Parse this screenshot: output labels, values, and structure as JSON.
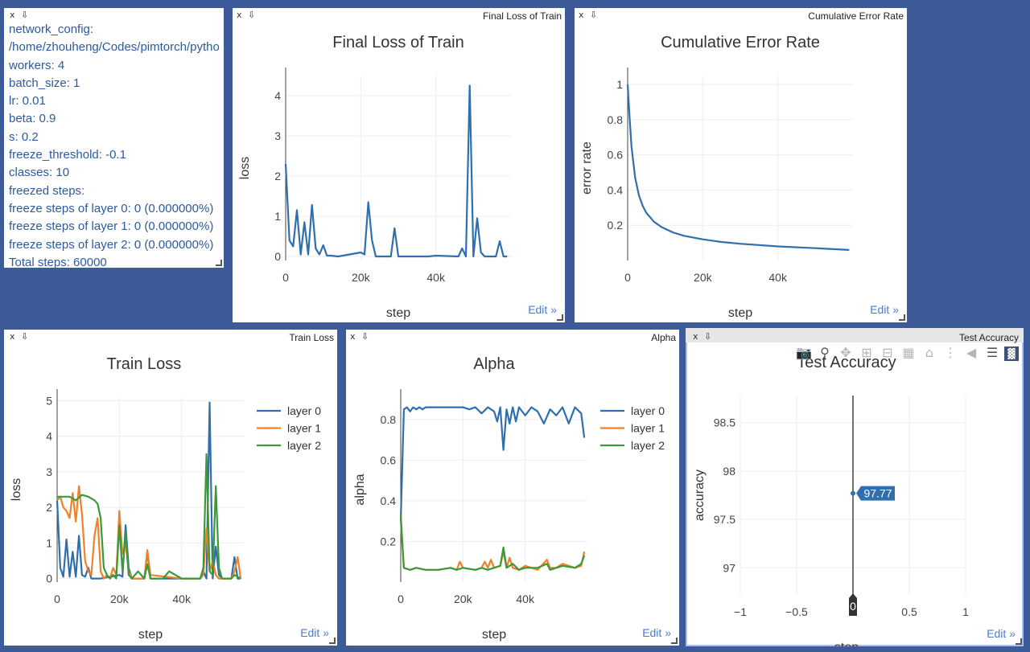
{
  "window_controls": {
    "close": "x",
    "download": "⇩"
  },
  "edit_label": "Edit »",
  "config_pane": {
    "lines": [
      "network_config:",
      "/home/zhouheng/Codes/pimtorch/pytho",
      "workers: 4",
      "batch_size: 1",
      "lr: 0.01",
      "beta: 0.9",
      "s: 0.2",
      "freeze_threshold: -0.1",
      "classes: 10",
      "freezed steps:",
      "freeze steps of layer 0: 0 (0.000000%)",
      "freeze steps of layer 1: 0 (0.000000%)",
      "freeze steps of layer 2: 0 (0.000000%)",
      "Total steps: 60000"
    ]
  },
  "colors": {
    "layer0": "#2f6fad",
    "layer1": "#f0802a",
    "layer2": "#3a9a3a",
    "tooltip": "#2f6fad"
  },
  "modebar_icons": [
    "camera-icon",
    "zoom-icon",
    "pan-icon",
    "zoom-in-icon",
    "zoom-out-icon",
    "autoscale-icon",
    "home-icon",
    "spike-lines-icon",
    "hover-closest-icon",
    "hover-compare-icon",
    "plotly-logo-icon"
  ],
  "chart_data": [
    {
      "pane_title": "Final Loss of Train",
      "type": "line",
      "title": "Final Loss of Train",
      "xlabel": "step",
      "ylabel": "loss",
      "xlim": [
        0,
        60000
      ],
      "ylim": [
        -0.1,
        4.5
      ],
      "xticks": [
        {
          "v": 0,
          "label": "0"
        },
        {
          "v": 20000,
          "label": "20k"
        },
        {
          "v": 40000,
          "label": "40k"
        }
      ],
      "yticks": [
        {
          "v": 0,
          "label": "0"
        },
        {
          "v": 1,
          "label": "1"
        },
        {
          "v": 2,
          "label": "2"
        },
        {
          "v": 3,
          "label": "3"
        },
        {
          "v": 4,
          "label": "4"
        }
      ],
      "series": [
        {
          "color_key": "layer0",
          "x": [
            0,
            1000,
            2000,
            3000,
            4000,
            5000,
            6000,
            7000,
            8000,
            9000,
            10000,
            11000,
            12000,
            14000,
            20000,
            21000,
            22000,
            23000,
            24000,
            25000,
            28000,
            29000,
            30000,
            38000,
            40000,
            46000,
            47000,
            48000,
            49000,
            50000,
            51000,
            52000,
            53000,
            56000,
            57000,
            58000,
            59000
          ],
          "y": [
            2.3,
            0.4,
            0.25,
            1.15,
            0.05,
            0.85,
            0.05,
            1.28,
            0.2,
            0.05,
            0.28,
            0.02,
            0.02,
            0.0,
            0.1,
            0.05,
            1.35,
            0.4,
            0.0,
            0.0,
            0.0,
            0.7,
            0.0,
            0.0,
            0.02,
            0.0,
            0.2,
            0.0,
            4.25,
            0.0,
            0.95,
            0.1,
            0.0,
            0.0,
            0.38,
            0.0,
            0.0
          ]
        }
      ]
    },
    {
      "pane_title": "Cumulative Error Rate",
      "type": "line",
      "title": "Cumulative Error Rate",
      "xlabel": "step",
      "ylabel": "error rate",
      "xlim": [
        0,
        60000
      ],
      "ylim": [
        0,
        1.05
      ],
      "xticks": [
        {
          "v": 0,
          "label": "0"
        },
        {
          "v": 20000,
          "label": "20k"
        },
        {
          "v": 40000,
          "label": "40k"
        }
      ],
      "yticks": [
        {
          "v": 0.2,
          "label": "0.2"
        },
        {
          "v": 0.4,
          "label": "0.4"
        },
        {
          "v": 0.6,
          "label": "0.6"
        },
        {
          "v": 0.8,
          "label": "0.8"
        },
        {
          "v": 1,
          "label": "1"
        }
      ],
      "series": [
        {
          "color_key": "layer0",
          "x": [
            0,
            500,
            1000,
            2000,
            3000,
            4000,
            5000,
            7000,
            9000,
            12000,
            15000,
            20000,
            25000,
            30000,
            40000,
            50000,
            59000
          ],
          "y": [
            1.0,
            0.82,
            0.65,
            0.47,
            0.37,
            0.31,
            0.27,
            0.22,
            0.19,
            0.16,
            0.14,
            0.12,
            0.105,
            0.095,
            0.08,
            0.07,
            0.06
          ]
        }
      ]
    },
    {
      "pane_title": "Train Loss",
      "type": "line",
      "title": "Train Loss",
      "xlabel": "step",
      "ylabel": "loss",
      "xlim": [
        0,
        60000
      ],
      "ylim": [
        -0.1,
        5.1
      ],
      "xticks": [
        {
          "v": 0,
          "label": "0"
        },
        {
          "v": 20000,
          "label": "20k"
        },
        {
          "v": 40000,
          "label": "40k"
        }
      ],
      "yticks": [
        {
          "v": 0,
          "label": "0"
        },
        {
          "v": 1,
          "label": "1"
        },
        {
          "v": 2,
          "label": "2"
        },
        {
          "v": 3,
          "label": "3"
        },
        {
          "v": 4,
          "label": "4"
        },
        {
          "v": 5,
          "label": "5"
        }
      ],
      "legend": [
        "layer 0",
        "layer 1",
        "layer 2"
      ],
      "series": [
        {
          "name": "layer 0",
          "color_key": "layer0",
          "x": [
            0,
            1000,
            2000,
            3000,
            4000,
            5000,
            6000,
            7000,
            8000,
            9000,
            10000,
            11000,
            12000,
            14000,
            20000,
            21000,
            22000,
            23000,
            24000,
            25000,
            28000,
            29000,
            30000,
            38000,
            40000,
            46000,
            47000,
            48000,
            49000,
            50000,
            51000,
            52000,
            53000,
            56000,
            57000,
            58000,
            59000
          ],
          "y": [
            2.2,
            0.3,
            0.05,
            1.1,
            0.05,
            0.75,
            0.05,
            1.2,
            0.1,
            0.05,
            0.3,
            0.0,
            0.0,
            0.0,
            0.1,
            0.05,
            1.5,
            0.3,
            0.0,
            0.0,
            0.0,
            0.75,
            0.0,
            0.0,
            0.0,
            0.0,
            0.2,
            0.0,
            4.95,
            0.0,
            0.9,
            0.1,
            0.0,
            0.0,
            0.6,
            0.0,
            0.0
          ]
        },
        {
          "name": "layer 1",
          "color_key": "layer1",
          "x": [
            0,
            1000,
            2000,
            3000,
            4000,
            5000,
            6000,
            7000,
            8000,
            9000,
            10000,
            11000,
            12000,
            13000,
            14000,
            15000,
            16000,
            17000,
            18000,
            19000,
            20000,
            21000,
            22000,
            23000,
            24000,
            25000,
            28000,
            29000,
            30000,
            40000,
            46000,
            47000,
            48000,
            49000,
            50000,
            51000,
            52000,
            56000,
            57000,
            58000,
            59000
          ],
          "y": [
            2.2,
            2.3,
            2.0,
            1.9,
            1.7,
            2.4,
            1.6,
            2.6,
            1.8,
            0.5,
            0.2,
            0.1,
            1.2,
            1.7,
            0.2,
            0.0,
            0.1,
            0.0,
            0.3,
            0.1,
            1.9,
            0.7,
            1.0,
            0.2,
            0.0,
            0.0,
            0.0,
            0.8,
            0.1,
            0.0,
            0.0,
            0.1,
            1.4,
            0.2,
            0.5,
            0.1,
            0.0,
            0.0,
            0.2,
            0.6,
            0.0
          ]
        },
        {
          "name": "layer 2",
          "color_key": "layer2",
          "x": [
            0,
            2000,
            4000,
            6000,
            8000,
            10000,
            12000,
            13000,
            14000,
            15000,
            16000,
            17000,
            18000,
            19000,
            20000,
            21000,
            22000,
            23000,
            24000,
            26000,
            28000,
            29000,
            30000,
            34000,
            36000,
            40000,
            46000,
            47000,
            48000,
            49000,
            50000,
            51000,
            52000,
            53000,
            54000,
            56000,
            57000,
            59000
          ],
          "y": [
            2.3,
            2.3,
            2.3,
            2.2,
            2.35,
            2.3,
            2.2,
            2.1,
            1.7,
            0.3,
            0.1,
            0.0,
            0.1,
            0.0,
            1.5,
            0.2,
            1.3,
            0.1,
            0.0,
            0.2,
            0.0,
            0.4,
            0.0,
            0.0,
            0.2,
            0.0,
            0.0,
            0.3,
            3.5,
            0.2,
            0.1,
            2.6,
            0.3,
            0.0,
            0.0,
            0.0,
            0.1,
            0.0
          ]
        }
      ]
    },
    {
      "pane_title": "Alpha",
      "type": "line",
      "title": "Alpha",
      "xlabel": "step",
      "ylabel": "alpha",
      "xlim": [
        0,
        60000
      ],
      "ylim": [
        0.0,
        0.91
      ],
      "xticks": [
        {
          "v": 0,
          "label": "0"
        },
        {
          "v": 20000,
          "label": "20k"
        },
        {
          "v": 40000,
          "label": "40k"
        }
      ],
      "yticks": [
        {
          "v": 0.2,
          "label": "0.2"
        },
        {
          "v": 0.4,
          "label": "0.4"
        },
        {
          "v": 0.6,
          "label": "0.6"
        },
        {
          "v": 0.8,
          "label": "0.8"
        }
      ],
      "legend": [
        "layer 0",
        "layer 1",
        "layer 2"
      ],
      "series": [
        {
          "name": "layer 0",
          "color_key": "layer0",
          "x": [
            0,
            1000,
            2000,
            3000,
            4000,
            5000,
            6000,
            7000,
            8000,
            10000,
            12000,
            14000,
            16000,
            18000,
            20000,
            22000,
            24000,
            26000,
            28000,
            30000,
            31000,
            32000,
            33000,
            34000,
            35000,
            36000,
            37000,
            38000,
            40000,
            42000,
            44000,
            46000,
            48000,
            50000,
            52000,
            54000,
            56000,
            58000,
            59000
          ],
          "y": [
            0.3,
            0.85,
            0.86,
            0.84,
            0.86,
            0.85,
            0.86,
            0.85,
            0.86,
            0.86,
            0.86,
            0.86,
            0.86,
            0.86,
            0.86,
            0.85,
            0.86,
            0.83,
            0.86,
            0.84,
            0.79,
            0.86,
            0.65,
            0.85,
            0.78,
            0.86,
            0.79,
            0.86,
            0.82,
            0.86,
            0.84,
            0.78,
            0.85,
            0.82,
            0.86,
            0.78,
            0.86,
            0.83,
            0.71
          ]
        },
        {
          "name": "layer 1",
          "color_key": "layer1",
          "x": [
            0,
            1000,
            3000,
            5000,
            8000,
            12000,
            16000,
            18000,
            19000,
            20000,
            24000,
            26000,
            27000,
            28000,
            29000,
            30000,
            32000,
            33000,
            34000,
            35000,
            36000,
            38000,
            40000,
            44000,
            47000,
            48000,
            50000,
            52000,
            56000,
            58000,
            59000
          ],
          "y": [
            0.3,
            0.07,
            0.06,
            0.07,
            0.06,
            0.06,
            0.07,
            0.06,
            0.1,
            0.07,
            0.06,
            0.07,
            0.1,
            0.07,
            0.11,
            0.07,
            0.08,
            0.15,
            0.07,
            0.12,
            0.07,
            0.06,
            0.08,
            0.06,
            0.11,
            0.07,
            0.07,
            0.09,
            0.07,
            0.08,
            0.15
          ]
        },
        {
          "name": "layer 2",
          "color_key": "layer2",
          "x": [
            0,
            1000,
            3000,
            5000,
            8000,
            12000,
            16000,
            18000,
            20000,
            24000,
            26000,
            28000,
            30000,
            32000,
            33000,
            34000,
            36000,
            38000,
            40000,
            44000,
            47000,
            48000,
            50000,
            52000,
            56000,
            58000,
            59000
          ],
          "y": [
            0.33,
            0.07,
            0.06,
            0.07,
            0.06,
            0.06,
            0.07,
            0.06,
            0.07,
            0.06,
            0.07,
            0.06,
            0.07,
            0.08,
            0.17,
            0.07,
            0.09,
            0.06,
            0.07,
            0.07,
            0.09,
            0.06,
            0.07,
            0.08,
            0.07,
            0.09,
            0.13
          ]
        }
      ]
    },
    {
      "pane_title": "Test Accuracy",
      "type": "scatter",
      "title": "Test Accuracy",
      "xlabel": "step",
      "ylabel": "accuracy",
      "xlim": [
        -1,
        1
      ],
      "ylim": [
        96.72,
        98.78
      ],
      "xticks": [
        {
          "v": -1,
          "label": "−1"
        },
        {
          "v": -0.5,
          "label": "−0.5"
        },
        {
          "v": 0.5,
          "label": "0.5"
        },
        {
          "v": 1,
          "label": "1"
        }
      ],
      "yticks": [
        {
          "v": 97,
          "label": "97"
        },
        {
          "v": 97.5,
          "label": "97.5"
        },
        {
          "v": 98,
          "label": "98"
        },
        {
          "v": 98.5,
          "label": "98.5"
        }
      ],
      "points": [
        {
          "x": 0,
          "y": 97.77
        }
      ],
      "hover_x_label": "0",
      "hover_y_label": "97.77"
    }
  ]
}
